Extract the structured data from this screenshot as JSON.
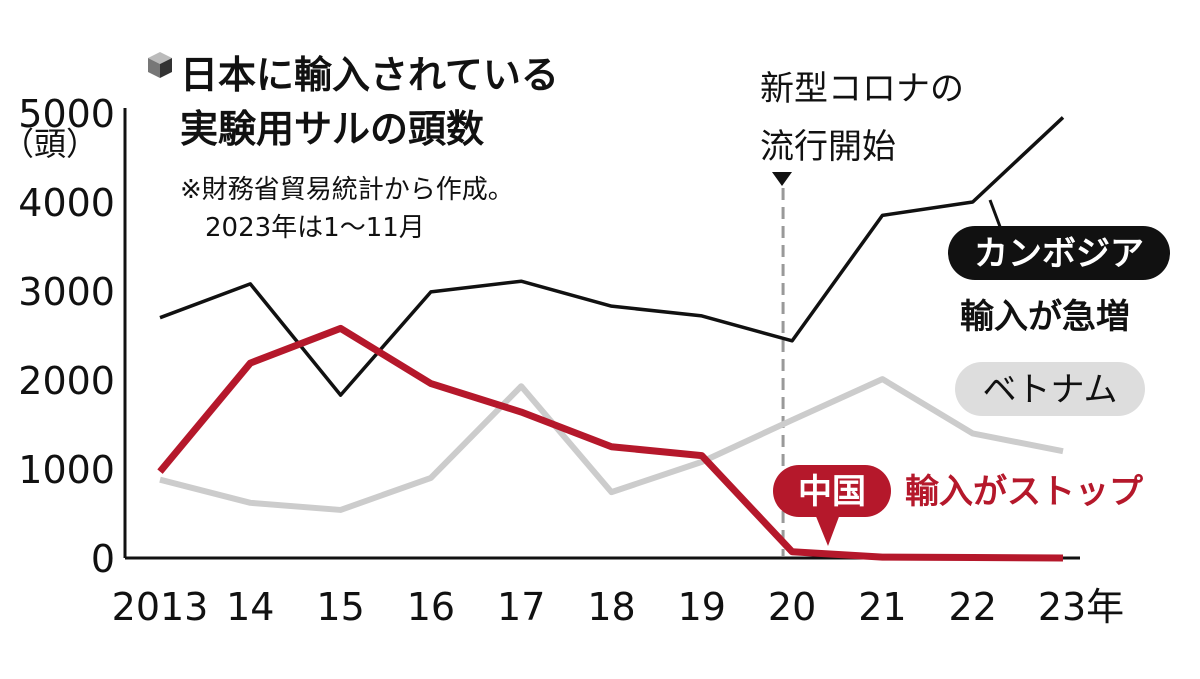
{
  "chart_data": {
    "type": "line",
    "title": "日本に輸入されている実験用サルの頭数",
    "title_lines": [
      "日本に輸入されている",
      "実験用サルの頭数"
    ],
    "note_lines": [
      "※財務省貿易統計から作成。",
      "2023年は1～11月"
    ],
    "ylabel": "（頭）",
    "ylim": [
      0,
      5000
    ],
    "yticks": [
      "5000",
      "4000",
      "3000",
      "2000",
      "1000",
      "0"
    ],
    "ytick_values": [
      5000,
      4000,
      3000,
      2000,
      1000,
      0
    ],
    "x": [
      2013,
      2014,
      2015,
      2016,
      2017,
      2018,
      2019,
      2020,
      2021,
      2022,
      2023
    ],
    "xticks": [
      "2013",
      "14",
      "15",
      "16",
      "17",
      "18",
      "19",
      "20",
      "21",
      "22",
      "23年"
    ],
    "grid": false,
    "series": [
      {
        "name": "ベトナム",
        "color": "#cccccc",
        "values": [
          880,
          620,
          540,
          900,
          1930,
          740,
          1080,
          1550,
          2010,
          1400,
          1200
        ]
      },
      {
        "name": "カンボジア",
        "color": "#111111",
        "values": [
          2700,
          3080,
          1830,
          2990,
          3110,
          2830,
          2720,
          2440,
          3850,
          4000,
          4950
        ]
      },
      {
        "name": "中国",
        "color": "#b5182b",
        "values": [
          970,
          2190,
          2580,
          1960,
          1640,
          1250,
          1150,
          70,
          10,
          5,
          0
        ]
      }
    ],
    "annotations": {
      "covid_lines": [
        "新型コロナの",
        "流行開始"
      ],
      "covid_x": 2019.9,
      "cambodia_note": "輸入が急増",
      "china_note": "輸入がストップ"
    }
  }
}
